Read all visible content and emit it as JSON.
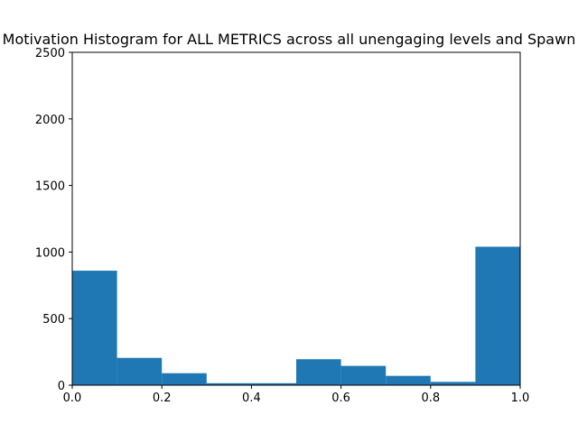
{
  "chart_data": {
    "type": "bar",
    "title": "Motivation Histogram for ALL METRICS across all unengaging levels and Spawn",
    "xlabel": "",
    "ylabel": "",
    "bin_edges": [
      0.0,
      0.1,
      0.2,
      0.3,
      0.4,
      0.5,
      0.6,
      0.7,
      0.8,
      0.9,
      1.0
    ],
    "values": [
      860,
      205,
      90,
      15,
      15,
      195,
      145,
      70,
      25,
      1040
    ],
    "xlim": [
      0.0,
      1.0
    ],
    "ylim": [
      0,
      2500
    ],
    "xticks": [
      "0.0",
      "0.2",
      "0.4",
      "0.6",
      "0.8",
      "1.0"
    ],
    "yticks": [
      "0",
      "500",
      "1000",
      "1500",
      "2000",
      "2500"
    ],
    "bar_color": "#1f77b4",
    "grid": false
  }
}
